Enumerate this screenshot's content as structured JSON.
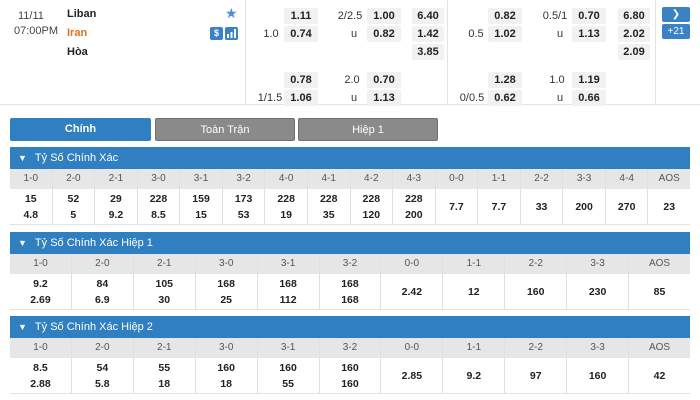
{
  "match": {
    "date": "11/11",
    "time": "07:00PM",
    "home": "Liban",
    "away": "Iran",
    "draw": "Hòa",
    "nav_more": "+21",
    "line1": {
      "hdp_main_home": "1.11",
      "ou_line": "2/2.5",
      "ou_over": "1.00",
      "x1_home": "6.40",
      "hdp_line": "1.0",
      "hdp_main_away": "0.74",
      "ou_u": "u",
      "ou_under": "0.82",
      "x1_away": "1.42",
      "x1_draw": "3.85",
      "h1_home": "0.82",
      "h1_ou_line": "0.5/1",
      "h1_over": "0.70",
      "h1_x1_home": "6.80",
      "h1_hdp_line": "0.5",
      "h1_away": "1.02",
      "h1_u": "u",
      "h1_under": "1.13",
      "h1_x1_away": "2.02",
      "h1_x1_draw": "2.09"
    },
    "line2": {
      "home": "0.78",
      "ou_line": "2.0",
      "over": "0.70",
      "hdp_line": "1/1.5",
      "away": "1.06",
      "u": "u",
      "under": "1.13",
      "h1_home": "1.28",
      "h1_ou_line": "1.0",
      "h1_over": "1.19",
      "h1_hdp_line": "0/0.5",
      "h1_away": "0.62",
      "h1_u": "u",
      "h1_under": "0.66"
    }
  },
  "tabs": [
    "Chính",
    "Toàn Trận",
    "Hiệp 1"
  ],
  "sections": [
    {
      "title": "Tỷ Số Chính Xác",
      "headers": [
        "1-0",
        "2-0",
        "2-1",
        "3-0",
        "3-1",
        "3-2",
        "4-0",
        "4-1",
        "4-2",
        "4-3",
        "0-0",
        "1-1",
        "2-2",
        "3-3",
        "4-4",
        "AOS"
      ],
      "top": [
        "15",
        "52",
        "29",
        "228",
        "159",
        "173",
        "228",
        "228",
        "228",
        "228",
        "7.7",
        "7.7",
        "33",
        "200",
        "270",
        "23"
      ],
      "bottom": [
        "4.8",
        "5",
        "9.2",
        "8.5",
        "15",
        "53",
        "19",
        "35",
        "120",
        "200",
        "",
        "",
        "",
        "",
        "",
        ""
      ]
    },
    {
      "title": "Tỷ Số Chính Xác Hiệp 1",
      "headers": [
        "1-0",
        "2-0",
        "2-1",
        "3-0",
        "3-1",
        "3-2",
        "0-0",
        "1-1",
        "2-2",
        "3-3",
        "AOS"
      ],
      "top": [
        "9.2",
        "84",
        "105",
        "168",
        "168",
        "168",
        "2.42",
        "12",
        "160",
        "230",
        "85"
      ],
      "bottom": [
        "2.69",
        "6.9",
        "30",
        "25",
        "112",
        "168",
        "",
        "",
        "",
        "",
        ""
      ]
    },
    {
      "title": "Tỷ Số Chính Xác Hiệp 2",
      "headers": [
        "1-0",
        "2-0",
        "2-1",
        "3-0",
        "3-1",
        "3-2",
        "0-0",
        "1-1",
        "2-2",
        "3-3",
        "AOS"
      ],
      "top": [
        "8.5",
        "54",
        "55",
        "160",
        "160",
        "160",
        "2.85",
        "9.2",
        "97",
        "160",
        "42"
      ],
      "bottom": [
        "2.88",
        "5.8",
        "18",
        "18",
        "55",
        "160",
        "",
        "",
        "",
        "",
        ""
      ]
    }
  ],
  "colors": {
    "accent": "#2f7fc1",
    "favorite": "#e0701a",
    "header_bg": "#e6e6e6"
  }
}
